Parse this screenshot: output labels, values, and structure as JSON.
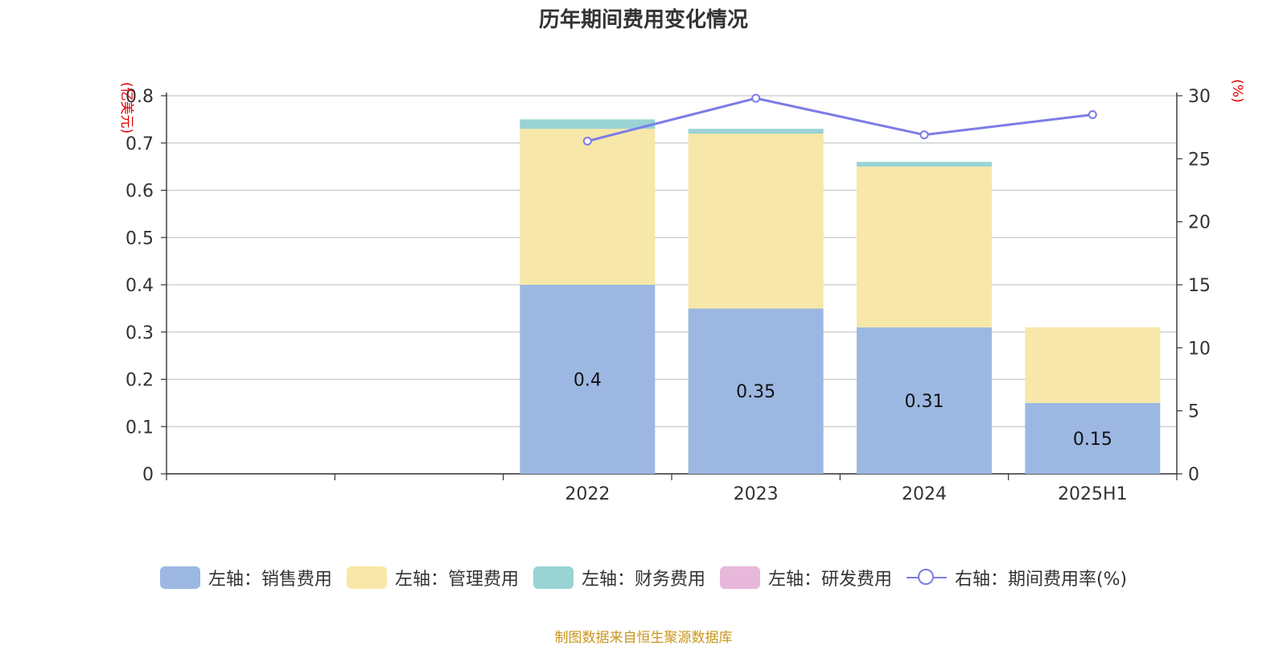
{
  "title": "历年期间费用变化情况",
  "source": "制图数据来自恒生聚源数据库",
  "legend": [
    {
      "label": "左轴：销售费用",
      "color": "#9cb8e2",
      "type": "bar"
    },
    {
      "label": "左轴：管理费用",
      "color": "#f7e7a8",
      "type": "bar"
    },
    {
      "label": "左轴：财务费用",
      "color": "#99d3d4",
      "type": "bar"
    },
    {
      "label": "左轴：研发费用",
      "color": "#e8b8db",
      "type": "bar"
    },
    {
      "label": "右轴：期间费用率(%)",
      "color": "#7c7ce8",
      "type": "line"
    }
  ],
  "chart_data": {
    "type": "bar",
    "stacked": true,
    "categories": [
      "",
      "",
      "2022",
      "2023",
      "2024",
      "2025H1"
    ],
    "series": [
      {
        "name": "左轴：销售费用",
        "axis": "left",
        "values": [
          null,
          null,
          0.4,
          0.35,
          0.31,
          0.15
        ],
        "labels": [
          null,
          null,
          "0.4",
          "0.35",
          "0.31",
          "0.15"
        ]
      },
      {
        "name": "左轴：管理费用",
        "axis": "left",
        "values": [
          null,
          null,
          0.33,
          0.37,
          0.34,
          0.16
        ]
      },
      {
        "name": "左轴：财务费用",
        "axis": "left",
        "values": [
          null,
          null,
          0.02,
          0.01,
          0.01,
          0
        ]
      },
      {
        "name": "左轴：研发费用",
        "axis": "left",
        "values": [
          null,
          null,
          0,
          0,
          0,
          0
        ]
      },
      {
        "name": "右轴：期间费用率(%)",
        "axis": "right",
        "type": "line",
        "values": [
          null,
          null,
          26.4,
          29.8,
          26.9,
          28.5
        ]
      }
    ],
    "ylabel_left": "(亿美元)",
    "ylabel_right": "(%)",
    "ylim_left": [
      0,
      0.8
    ],
    "yticks_left": [
      "0",
      "0.1",
      "0.2",
      "0.3",
      "0.4",
      "0.5",
      "0.6",
      "0.7",
      "0.8"
    ],
    "ylim_right": [
      0,
      30
    ],
    "yticks_right": [
      "0",
      "5",
      "10",
      "15",
      "20",
      "25",
      "30"
    ],
    "grid": true,
    "legend_position": "bottom"
  }
}
